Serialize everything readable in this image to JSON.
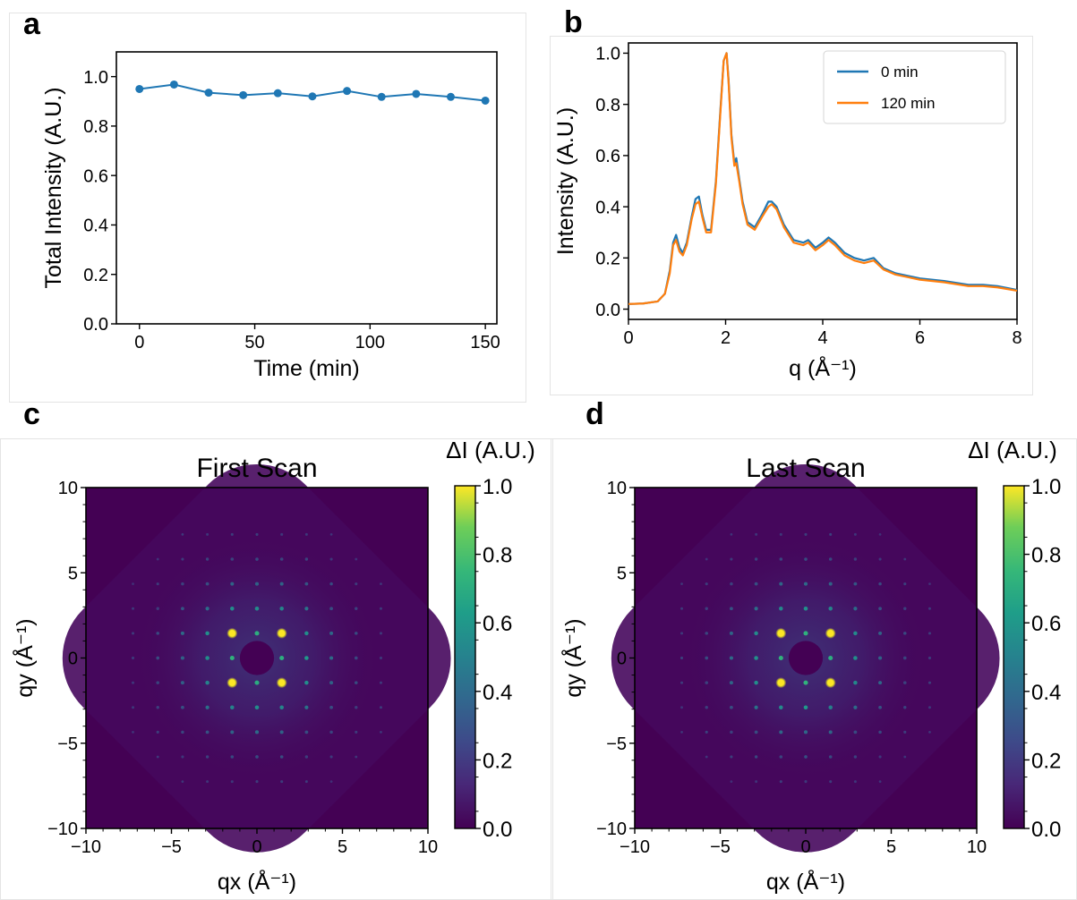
{
  "panels": {
    "a": "a",
    "b": "b",
    "c": "c",
    "d": "d"
  },
  "chart_data": [
    {
      "id": "a",
      "type": "line",
      "xlabel": "Time (min)",
      "ylabel": "Total Intensity (A.U.)",
      "xlim": [
        -10,
        155
      ],
      "ylim": [
        0,
        1.1
      ],
      "xticks": [
        "0",
        "50",
        "100",
        "150"
      ],
      "yticks": [
        "0.0",
        "0.2",
        "0.4",
        "0.6",
        "0.8",
        "1.0"
      ],
      "color": "#1f77b4",
      "x": [
        0,
        15,
        30,
        45,
        60,
        75,
        90,
        105,
        120,
        135,
        150
      ],
      "y": [
        0.95,
        0.968,
        0.935,
        0.925,
        0.933,
        0.92,
        0.942,
        0.918,
        0.93,
        0.918,
        0.903
      ]
    },
    {
      "id": "b",
      "type": "line",
      "xlabel": "q (Å⁻¹)",
      "ylabel": "Intensity (A.U.)",
      "xlim": [
        0,
        8
      ],
      "ylim": [
        -0.04,
        1.04
      ],
      "xticks": [
        "0",
        "2",
        "4",
        "6",
        "8"
      ],
      "yticks": [
        "0.0",
        "0.2",
        "0.4",
        "0.6",
        "0.8",
        "1.0"
      ],
      "legend_position": "top-right",
      "series": [
        {
          "name": "0 min",
          "color": "#1f77b4",
          "x": [
            0,
            0.3,
            0.6,
            0.75,
            0.85,
            0.92,
            0.98,
            1.05,
            1.12,
            1.2,
            1.3,
            1.38,
            1.45,
            1.52,
            1.6,
            1.7,
            1.8,
            1.9,
            1.96,
            2.02,
            2.06,
            2.12,
            2.18,
            2.22,
            2.28,
            2.35,
            2.45,
            2.6,
            2.75,
            2.88,
            2.95,
            3.05,
            3.2,
            3.4,
            3.6,
            3.7,
            3.85,
            4.0,
            4.12,
            4.25,
            4.45,
            4.65,
            4.85,
            5.05,
            5.25,
            5.5,
            6.0,
            6.5,
            7.0,
            7.3,
            7.6,
            8.0
          ],
          "y": [
            0.02,
            0.022,
            0.03,
            0.06,
            0.15,
            0.26,
            0.29,
            0.24,
            0.22,
            0.26,
            0.36,
            0.43,
            0.44,
            0.37,
            0.31,
            0.31,
            0.5,
            0.8,
            0.97,
            1.0,
            0.9,
            0.68,
            0.57,
            0.59,
            0.51,
            0.42,
            0.34,
            0.32,
            0.37,
            0.42,
            0.42,
            0.4,
            0.33,
            0.27,
            0.26,
            0.27,
            0.24,
            0.26,
            0.28,
            0.26,
            0.22,
            0.2,
            0.19,
            0.2,
            0.16,
            0.14,
            0.12,
            0.11,
            0.095,
            0.095,
            0.09,
            0.075
          ]
        },
        {
          "name": "120 min",
          "color": "#ff7f0e",
          "x": [
            0,
            0.3,
            0.6,
            0.75,
            0.85,
            0.92,
            0.98,
            1.05,
            1.12,
            1.2,
            1.3,
            1.38,
            1.45,
            1.52,
            1.6,
            1.7,
            1.8,
            1.9,
            1.96,
            2.02,
            2.06,
            2.12,
            2.18,
            2.22,
            2.28,
            2.35,
            2.45,
            2.6,
            2.75,
            2.88,
            2.95,
            3.05,
            3.2,
            3.4,
            3.6,
            3.7,
            3.85,
            4.0,
            4.12,
            4.25,
            4.45,
            4.65,
            4.85,
            5.05,
            5.25,
            5.5,
            6.0,
            6.5,
            7.0,
            7.3,
            7.6,
            8.0
          ],
          "y": [
            0.02,
            0.022,
            0.03,
            0.06,
            0.14,
            0.25,
            0.27,
            0.225,
            0.21,
            0.25,
            0.35,
            0.41,
            0.42,
            0.36,
            0.3,
            0.3,
            0.49,
            0.79,
            0.97,
            1.0,
            0.89,
            0.67,
            0.56,
            0.57,
            0.5,
            0.41,
            0.33,
            0.31,
            0.36,
            0.4,
            0.41,
            0.39,
            0.32,
            0.26,
            0.25,
            0.26,
            0.23,
            0.25,
            0.27,
            0.25,
            0.21,
            0.19,
            0.18,
            0.19,
            0.155,
            0.135,
            0.115,
            0.105,
            0.09,
            0.09,
            0.085,
            0.072
          ]
        }
      ]
    },
    {
      "id": "c",
      "type": "heatmap",
      "title": "First Scan",
      "xlabel": "qx (Å⁻¹)",
      "ylabel": "qy (Å⁻¹)",
      "xlim": [
        -10,
        10
      ],
      "ylim": [
        -10,
        10
      ],
      "xticks": [
        "−10",
        "−5",
        "0",
        "5",
        "10"
      ],
      "yticks": [
        "−10",
        "−5",
        "0",
        "5",
        "10"
      ],
      "colorbar_label": "ΔI (A.U.)",
      "colorbar_ticks": [
        "0.0",
        "0.2",
        "0.4",
        "0.6",
        "0.8",
        "1.0"
      ],
      "colormap": "viridis",
      "lattice_spacing": 1.45,
      "bright_spots": [
        [
          -1.45,
          1.45
        ],
        [
          1.45,
          1.45
        ],
        [
          -1.45,
          -1.45
        ],
        [
          1.45,
          -1.45
        ]
      ],
      "beamstop_radius": 1.0
    },
    {
      "id": "d",
      "type": "heatmap",
      "title": "Last Scan",
      "xlabel": "qx (Å⁻¹)",
      "ylabel": "qy (Å⁻¹)",
      "xlim": [
        -10,
        10
      ],
      "ylim": [
        -10,
        10
      ],
      "xticks": [
        "−10",
        "−5",
        "0",
        "5",
        "10"
      ],
      "yticks": [
        "−10",
        "−5",
        "0",
        "5",
        "10"
      ],
      "colorbar_label": "ΔI (A.U.)",
      "colorbar_ticks": [
        "0.0",
        "0.2",
        "0.4",
        "0.6",
        "0.8",
        "1.0"
      ],
      "colormap": "viridis",
      "lattice_spacing": 1.45,
      "bright_spots": [
        [
          -1.45,
          1.45
        ],
        [
          1.45,
          1.45
        ],
        [
          -1.45,
          -1.45
        ],
        [
          1.45,
          -1.45
        ]
      ],
      "beamstop_radius": 1.0
    }
  ]
}
